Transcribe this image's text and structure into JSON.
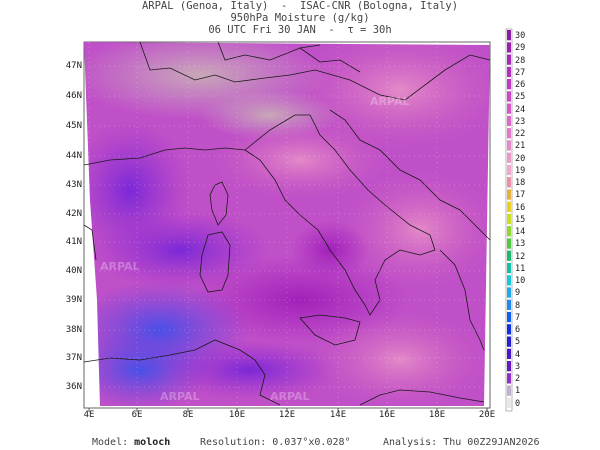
{
  "header": {
    "line1": "ARPAL (Genoa, Italy)  -  ISAC-CNR (Bologna, Italy)",
    "line2": "950hPa Moisture (g/kg)",
    "line3": "06 UTC Fri 30 JAN  -  τ = 30h"
  },
  "map": {
    "lat_labels": [
      "47N",
      "46N",
      "45N",
      "44N",
      "43N",
      "42N",
      "41N",
      "40N",
      "39N",
      "38N",
      "37N",
      "36N"
    ],
    "lon_labels": [
      "4E",
      "6E",
      "8E",
      "10E",
      "12E",
      "14E",
      "16E",
      "18E",
      "20E"
    ],
    "watermark": "ARPAL"
  },
  "colorbar": {
    "min": 0,
    "max": 30,
    "ticks": [
      "30",
      "29",
      "28",
      "27",
      "26",
      "25",
      "24",
      "23",
      "22",
      "21",
      "20",
      "19",
      "18",
      "17",
      "16",
      "15",
      "14",
      "13",
      "12",
      "11",
      "10",
      "9",
      "8",
      "7",
      "6",
      "5",
      "4",
      "3",
      "2",
      "1",
      "0"
    ],
    "colors": {
      "low": "#e8e8e8",
      "mid_cyan": "#18c8d8",
      "blue": "#1030e0",
      "violet": "#6020c8",
      "magenta": "#b028c0",
      "pink": "#e070b8",
      "high": "#8a1aa8"
    }
  },
  "footer": {
    "model_label": "Model:",
    "model_value": "moloch",
    "resolution_label": "Resolution:",
    "resolution_value": "0.037°x0.028°",
    "analysis_label": "Analysis:",
    "analysis_value": "Thu 00Z29JAN2026"
  }
}
